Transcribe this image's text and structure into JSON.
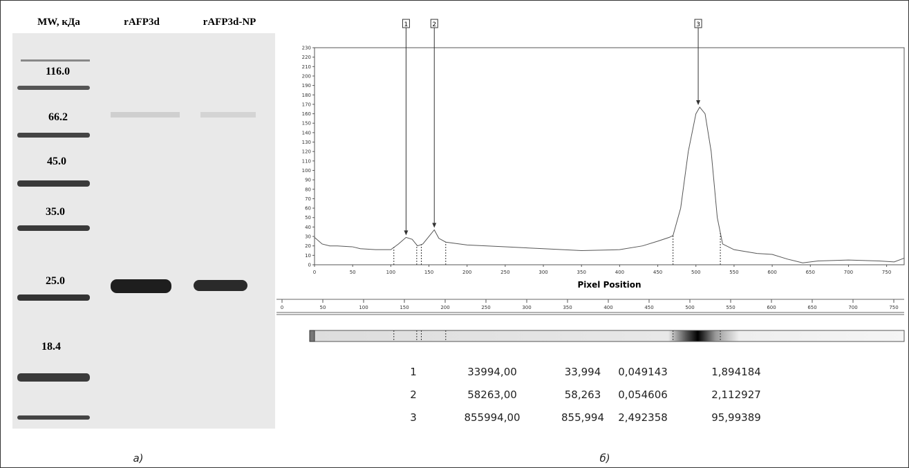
{
  "gel": {
    "headers": [
      "MW, кДа",
      "rAFP3d",
      "rAFP3d-NP"
    ],
    "markers": [
      "116.0",
      "66.2",
      "45.0",
      "35.0",
      "25.0",
      "18.4"
    ]
  },
  "chart_data": {
    "type": "line",
    "xlabel": "Pixel Position",
    "x": [
      0,
      10,
      20,
      30,
      50,
      60,
      80,
      100,
      110,
      120,
      128,
      135,
      142,
      150,
      157,
      163,
      172,
      200,
      250,
      300,
      350,
      400,
      430,
      450,
      465,
      470,
      480,
      490,
      500,
      505,
      512,
      520,
      528,
      535,
      550,
      580,
      600,
      620,
      640,
      660,
      700,
      740,
      760,
      773
    ],
    "series": [
      {
        "color": "#555555",
        "values": [
          29,
          22,
          20,
          20,
          19,
          17,
          16,
          16,
          22,
          29,
          27,
          20,
          22,
          30,
          37,
          28,
          24,
          21,
          19,
          17,
          15,
          16,
          20,
          25,
          29,
          31,
          60,
          120,
          160,
          167,
          160,
          120,
          50,
          22,
          16,
          12,
          11,
          6,
          2,
          4,
          5,
          4,
          3,
          7
        ]
      }
    ],
    "xlim": [
      0,
      773
    ],
    "ylim": [
      0,
      230
    ],
    "xticks": [
      0,
      50,
      100,
      150,
      200,
      250,
      300,
      350,
      400,
      450,
      500,
      550,
      600,
      650,
      700,
      750
    ],
    "yticks": [
      0,
      10,
      20,
      30,
      40,
      50,
      60,
      70,
      80,
      90,
      100,
      110,
      120,
      130,
      140,
      150,
      160,
      170,
      180,
      190,
      200,
      210,
      220,
      230
    ],
    "annotations": [
      {
        "label": "1",
        "x": 120,
        "y": 29
      },
      {
        "label": "2",
        "x": 157,
        "y": 37
      },
      {
        "label": "3",
        "x": 503,
        "y": 167
      }
    ],
    "boundaries": [
      104,
      134,
      140,
      172,
      470,
      532
    ]
  },
  "table": {
    "rows": [
      [
        "1",
        "33994,00",
        "33,994",
        "0,049143",
        "1,894184"
      ],
      [
        "2",
        "58263,00",
        "58,263",
        "0,054606",
        "2,112927"
      ],
      [
        "3",
        "855994,00",
        "855,994",
        "2,492358",
        "95,99389"
      ]
    ]
  },
  "captions": [
    "а)",
    "б)"
  ]
}
